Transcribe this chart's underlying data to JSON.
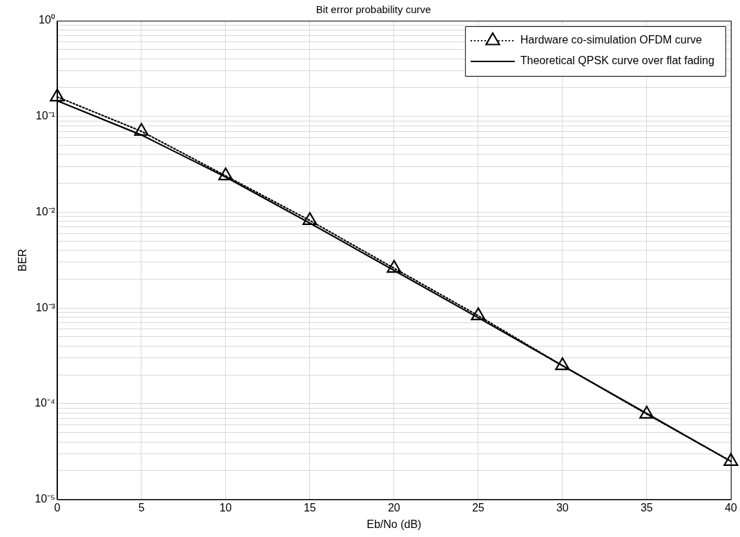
{
  "chart_data": {
    "type": "line",
    "title": "Bit error probability curve",
    "xlabel": "Eb/No (dB)",
    "ylabel": "BER",
    "x": [
      0,
      5,
      10,
      15,
      20,
      25,
      30,
      35,
      40
    ],
    "series": [
      {
        "name": "Hardware co-simulation OFDM curve",
        "color": "#000000",
        "marker": "triangle",
        "line_style": "dotted",
        "values": [
          0.16,
          0.07,
          0.024,
          0.0082,
          0.0026,
          0.00083,
          0.00025,
          7.8e-05,
          2.5e-05
        ]
      },
      {
        "name": "Theoretical QPSK curve over flat fading",
        "color": "#000000",
        "marker": "none",
        "line_style": "solid",
        "values": [
          0.146,
          0.064,
          0.0233,
          0.0077,
          0.00247,
          0.00079,
          0.00025,
          7.9e-05,
          2.5e-05
        ]
      }
    ],
    "xlim": [
      0,
      40
    ],
    "xticks": [
      0,
      5,
      10,
      15,
      20,
      25,
      30,
      35,
      40
    ],
    "ylim": [
      1e-05,
      1
    ],
    "yticks": [
      {
        "value": 1e-05,
        "label": "10⁻⁵"
      },
      {
        "value": 2e-05,
        "label": null
      },
      {
        "value": 3e-05,
        "label": null
      },
      {
        "value": 4e-05,
        "label": null
      },
      {
        "value": 5e-05,
        "label": null
      },
      {
        "value": 6e-05,
        "label": null
      },
      {
        "value": 7e-05,
        "label": null
      },
      {
        "value": 8e-05,
        "label": null
      },
      {
        "value": 9e-05,
        "label": null
      },
      {
        "value": 0.0001,
        "label": "10⁻⁴"
      },
      {
        "value": 0.0002,
        "label": null
      },
      {
        "value": 0.0003,
        "label": null
      },
      {
        "value": 0.0004,
        "label": null
      },
      {
        "value": 0.0005,
        "label": null
      },
      {
        "value": 0.0006,
        "label": null
      },
      {
        "value": 0.0007,
        "label": null
      },
      {
        "value": 0.0008,
        "label": null
      },
      {
        "value": 0.0009,
        "label": null
      },
      {
        "value": 0.001,
        "label": "10⁻³"
      },
      {
        "value": 0.002,
        "label": null
      },
      {
        "value": 0.003,
        "label": null
      },
      {
        "value": 0.004,
        "label": null
      },
      {
        "value": 0.005,
        "label": null
      },
      {
        "value": 0.006,
        "label": null
      },
      {
        "value": 0.007,
        "label": null
      },
      {
        "value": 0.008,
        "label": null
      },
      {
        "value": 0.009,
        "label": null
      },
      {
        "value": 0.01,
        "label": "10⁻²"
      },
      {
        "value": 0.02,
        "label": null
      },
      {
        "value": 0.03,
        "label": null
      },
      {
        "value": 0.04,
        "label": null
      },
      {
        "value": 0.05,
        "label": null
      },
      {
        "value": 0.06,
        "label": null
      },
      {
        "value": 0.07,
        "label": null
      },
      {
        "value": 0.08,
        "label": null
      },
      {
        "value": 0.09,
        "label": null
      },
      {
        "value": 0.1,
        "label": "10⁻¹"
      },
      {
        "value": 0.2,
        "label": null
      },
      {
        "value": 0.3,
        "label": null
      },
      {
        "value": 0.4,
        "label": null
      },
      {
        "value": 0.5,
        "label": null
      },
      {
        "value": 0.6,
        "label": null
      },
      {
        "value": 0.7,
        "label": null
      },
      {
        "value": 0.8,
        "label": null
      },
      {
        "value": 0.9,
        "label": null
      },
      {
        "value": 1,
        "label": "10⁰"
      }
    ],
    "log": "y",
    "grid": true,
    "legend": "top right"
  }
}
